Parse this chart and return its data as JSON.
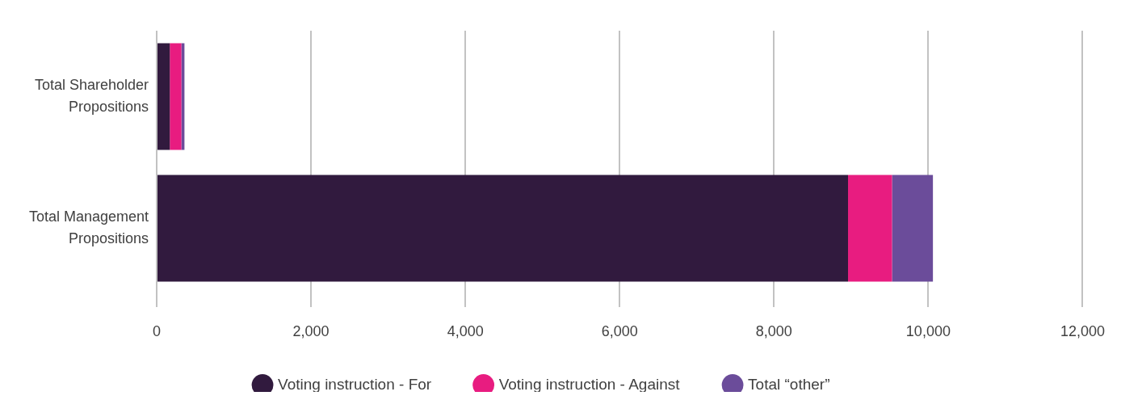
{
  "chart_data": {
    "type": "bar",
    "orientation": "horizontal",
    "stacked": true,
    "categories": [
      "Total Shareholder Propositions",
      "Total Management Propositions"
    ],
    "series": [
      {
        "name": "Voting instruction - For",
        "color": "#311a3e",
        "values": [
          170,
          8960
        ]
      },
      {
        "name": "Voting instruction - Against",
        "color": "#e81c80",
        "values": [
          150,
          570
        ]
      },
      {
        "name": "Total “other”",
        "color": "#6b4c9a",
        "values": [
          40,
          530
        ]
      }
    ],
    "xlim": [
      0,
      12000
    ],
    "xticks": [
      0,
      {
        "value": 2000,
        "label": "2,000"
      },
      {
        "value": 4000,
        "label": "4,000"
      },
      {
        "value": 6000,
        "label": "6,000"
      },
      {
        "value": 8000,
        "label": "8,000"
      },
      {
        "value": 10000,
        "label": "10,000"
      },
      {
        "value": 12000,
        "label": "12,000"
      }
    ],
    "grid": "x",
    "legend": "bottom"
  }
}
